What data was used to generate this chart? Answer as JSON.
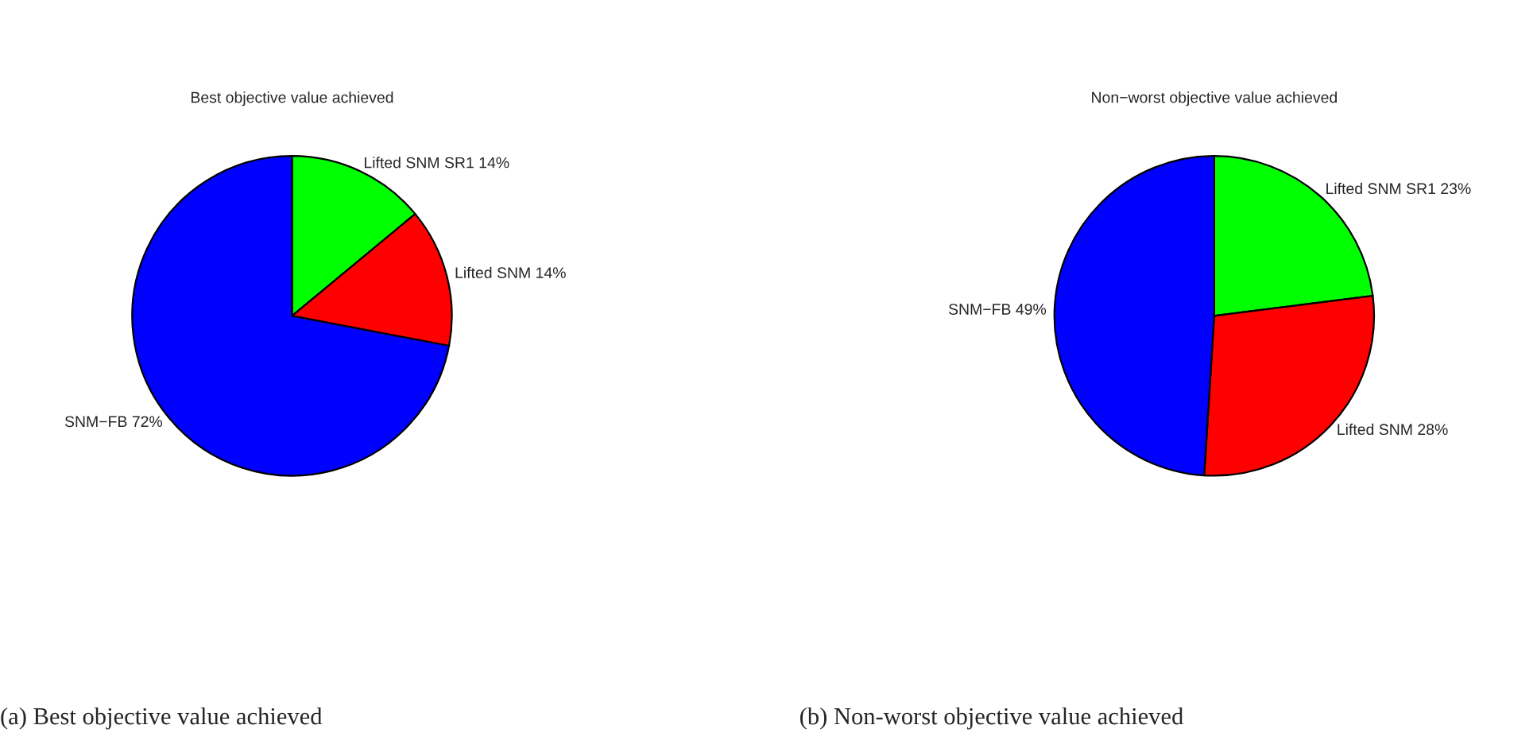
{
  "chart_data": [
    {
      "type": "pie",
      "title": "Best objective value achieved",
      "categories": [
        "Lifted SNM SR1",
        "Lifted SNM",
        "SNM−FB"
      ],
      "values": [
        14,
        14,
        72
      ],
      "value_labels": [
        "14%",
        "14%",
        "72%"
      ],
      "colors": [
        "#00ff00",
        "#ff0000",
        "#0000ff"
      ],
      "annotations": [
        "(a) Best objective value achieved"
      ]
    },
    {
      "type": "pie",
      "title": "Non−worst objective value achieved",
      "categories": [
        "Lifted SNM SR1",
        "Lifted SNM",
        "SNM−FB"
      ],
      "values": [
        23,
        28,
        49
      ],
      "value_labels": [
        "23%",
        "28%",
        "49%"
      ],
      "colors": [
        "#00ff00",
        "#ff0000",
        "#0000ff"
      ],
      "annotations": [
        "(b) Non-worst objective value achieved"
      ]
    }
  ]
}
